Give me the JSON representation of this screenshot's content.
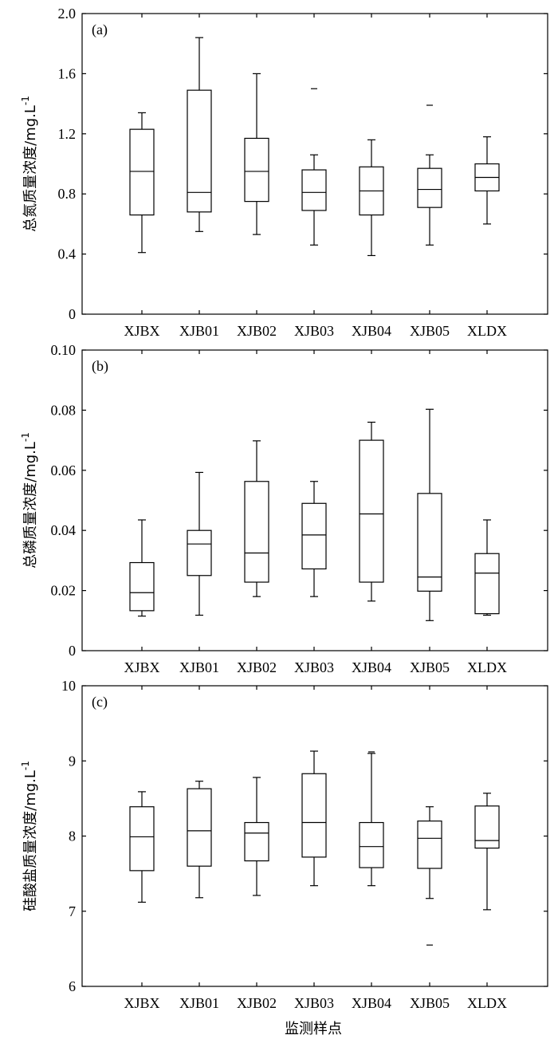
{
  "colors": {
    "stroke": "#000000",
    "background": "#ffffff",
    "box_fill": "#ffffff"
  },
  "x_axis_title": "监测样点",
  "chart_data": [
    {
      "type": "box",
      "panel_label": "(a)",
      "ylabel": "总氮质量浓度/mg.L",
      "ylabel_superscript": "-1",
      "ylim": [
        0,
        2.0
      ],
      "yticks": [
        0,
        0.4,
        0.8,
        1.2,
        1.6,
        2.0
      ],
      "ytick_labels": [
        "0",
        "0.4",
        "0.8",
        "1.2",
        "1.6",
        "2.0"
      ],
      "categories": [
        "XJBX",
        "XJB01",
        "XJB02",
        "XJB03",
        "XJB04",
        "XJB05",
        "XLDX"
      ],
      "boxes": [
        {
          "category": "XJBX",
          "whisker_low": 0.41,
          "q1": 0.66,
          "median": 0.95,
          "q3": 1.23,
          "whisker_high": 1.34,
          "outliers": []
        },
        {
          "category": "XJB01",
          "whisker_low": 0.55,
          "q1": 0.68,
          "median": 0.81,
          "q3": 1.49,
          "whisker_high": 1.84,
          "outliers": []
        },
        {
          "category": "XJB02",
          "whisker_low": 0.53,
          "q1": 0.75,
          "median": 0.95,
          "q3": 1.17,
          "whisker_high": 1.6,
          "outliers": []
        },
        {
          "category": "XJB03",
          "whisker_low": 0.46,
          "q1": 0.69,
          "median": 0.81,
          "q3": 0.96,
          "whisker_high": 1.06,
          "outliers": [
            1.5
          ]
        },
        {
          "category": "XJB04",
          "whisker_low": 0.39,
          "q1": 0.66,
          "median": 0.82,
          "q3": 0.98,
          "whisker_high": 1.16,
          "outliers": []
        },
        {
          "category": "XJB05",
          "whisker_low": 0.46,
          "q1": 0.71,
          "median": 0.83,
          "q3": 0.97,
          "whisker_high": 1.06,
          "outliers": [
            1.39
          ]
        },
        {
          "category": "XLDX",
          "whisker_low": 0.6,
          "q1": 0.82,
          "median": 0.91,
          "q3": 1.0,
          "whisker_high": 1.18,
          "outliers": []
        }
      ]
    },
    {
      "type": "box",
      "panel_label": "(b)",
      "ylabel": "总磷质量浓度/mg.L",
      "ylabel_superscript": "-1",
      "ylim": [
        0,
        0.1
      ],
      "yticks": [
        0,
        0.02,
        0.04,
        0.06,
        0.08,
        0.1
      ],
      "ytick_labels": [
        "0",
        "0.02",
        "0.04",
        "0.06",
        "0.08",
        "0.10"
      ],
      "categories": [
        "XJBX",
        "XJB01",
        "XJB02",
        "XJB03",
        "XJB04",
        "XJB05",
        "XLDX"
      ],
      "boxes": [
        {
          "category": "XJBX",
          "whisker_low": 0.0115,
          "q1": 0.0133,
          "median": 0.0193,
          "q3": 0.0293,
          "whisker_high": 0.0435,
          "outliers": []
        },
        {
          "category": "XJB01",
          "whisker_low": 0.0118,
          "q1": 0.025,
          "median": 0.0355,
          "q3": 0.04,
          "whisker_high": 0.0593,
          "outliers": []
        },
        {
          "category": "XJB02",
          "whisker_low": 0.018,
          "q1": 0.0228,
          "median": 0.0325,
          "q3": 0.0563,
          "whisker_high": 0.0698,
          "outliers": []
        },
        {
          "category": "XJB03",
          "whisker_low": 0.018,
          "q1": 0.0272,
          "median": 0.0385,
          "q3": 0.049,
          "whisker_high": 0.0563,
          "outliers": []
        },
        {
          "category": "XJB04",
          "whisker_low": 0.0165,
          "q1": 0.0228,
          "median": 0.0455,
          "q3": 0.07,
          "whisker_high": 0.076,
          "outliers": []
        },
        {
          "category": "XJB05",
          "whisker_low": 0.01,
          "q1": 0.0198,
          "median": 0.0245,
          "q3": 0.0523,
          "whisker_high": 0.0803,
          "outliers": []
        },
        {
          "category": "XLDX",
          "whisker_low": 0.0118,
          "q1": 0.0123,
          "median": 0.0258,
          "q3": 0.0323,
          "whisker_high": 0.0435,
          "outliers": []
        }
      ]
    },
    {
      "type": "box",
      "panel_label": "(c)",
      "ylabel": "硅酸盐质量浓度/mg.L",
      "ylabel_superscript": "-1",
      "ylim": [
        6,
        10
      ],
      "yticks": [
        6,
        7,
        8,
        9,
        10
      ],
      "ytick_labels": [
        "6",
        "7",
        "8",
        "9",
        "10"
      ],
      "categories": [
        "XJBX",
        "XJB01",
        "XJB02",
        "XJB03",
        "XJB04",
        "XJB05",
        "XLDX"
      ],
      "boxes": [
        {
          "category": "XJBX",
          "whisker_low": 7.12,
          "q1": 7.54,
          "median": 7.99,
          "q3": 8.39,
          "whisker_high": 8.59,
          "outliers": []
        },
        {
          "category": "XJB01",
          "whisker_low": 7.18,
          "q1": 7.6,
          "median": 8.07,
          "q3": 8.63,
          "whisker_high": 8.73,
          "outliers": []
        },
        {
          "category": "XJB02",
          "whisker_low": 7.21,
          "q1": 7.67,
          "median": 8.04,
          "q3": 8.18,
          "whisker_high": 8.78,
          "outliers": []
        },
        {
          "category": "XJB03",
          "whisker_low": 7.34,
          "q1": 7.72,
          "median": 8.18,
          "q3": 8.83,
          "whisker_high": 9.13,
          "outliers": []
        },
        {
          "category": "XJB04",
          "whisker_low": 7.34,
          "q1": 7.58,
          "median": 7.86,
          "q3": 8.18,
          "whisker_high": 9.1,
          "outliers": [
            9.12
          ]
        },
        {
          "category": "XJB05",
          "whisker_low": 7.17,
          "q1": 7.57,
          "median": 7.97,
          "q3": 8.2,
          "whisker_high": 8.39,
          "outliers": [
            6.55
          ]
        },
        {
          "category": "XLDX",
          "whisker_low": 7.02,
          "q1": 7.84,
          "median": 7.94,
          "q3": 8.4,
          "whisker_high": 8.57,
          "outliers": []
        }
      ]
    }
  ]
}
